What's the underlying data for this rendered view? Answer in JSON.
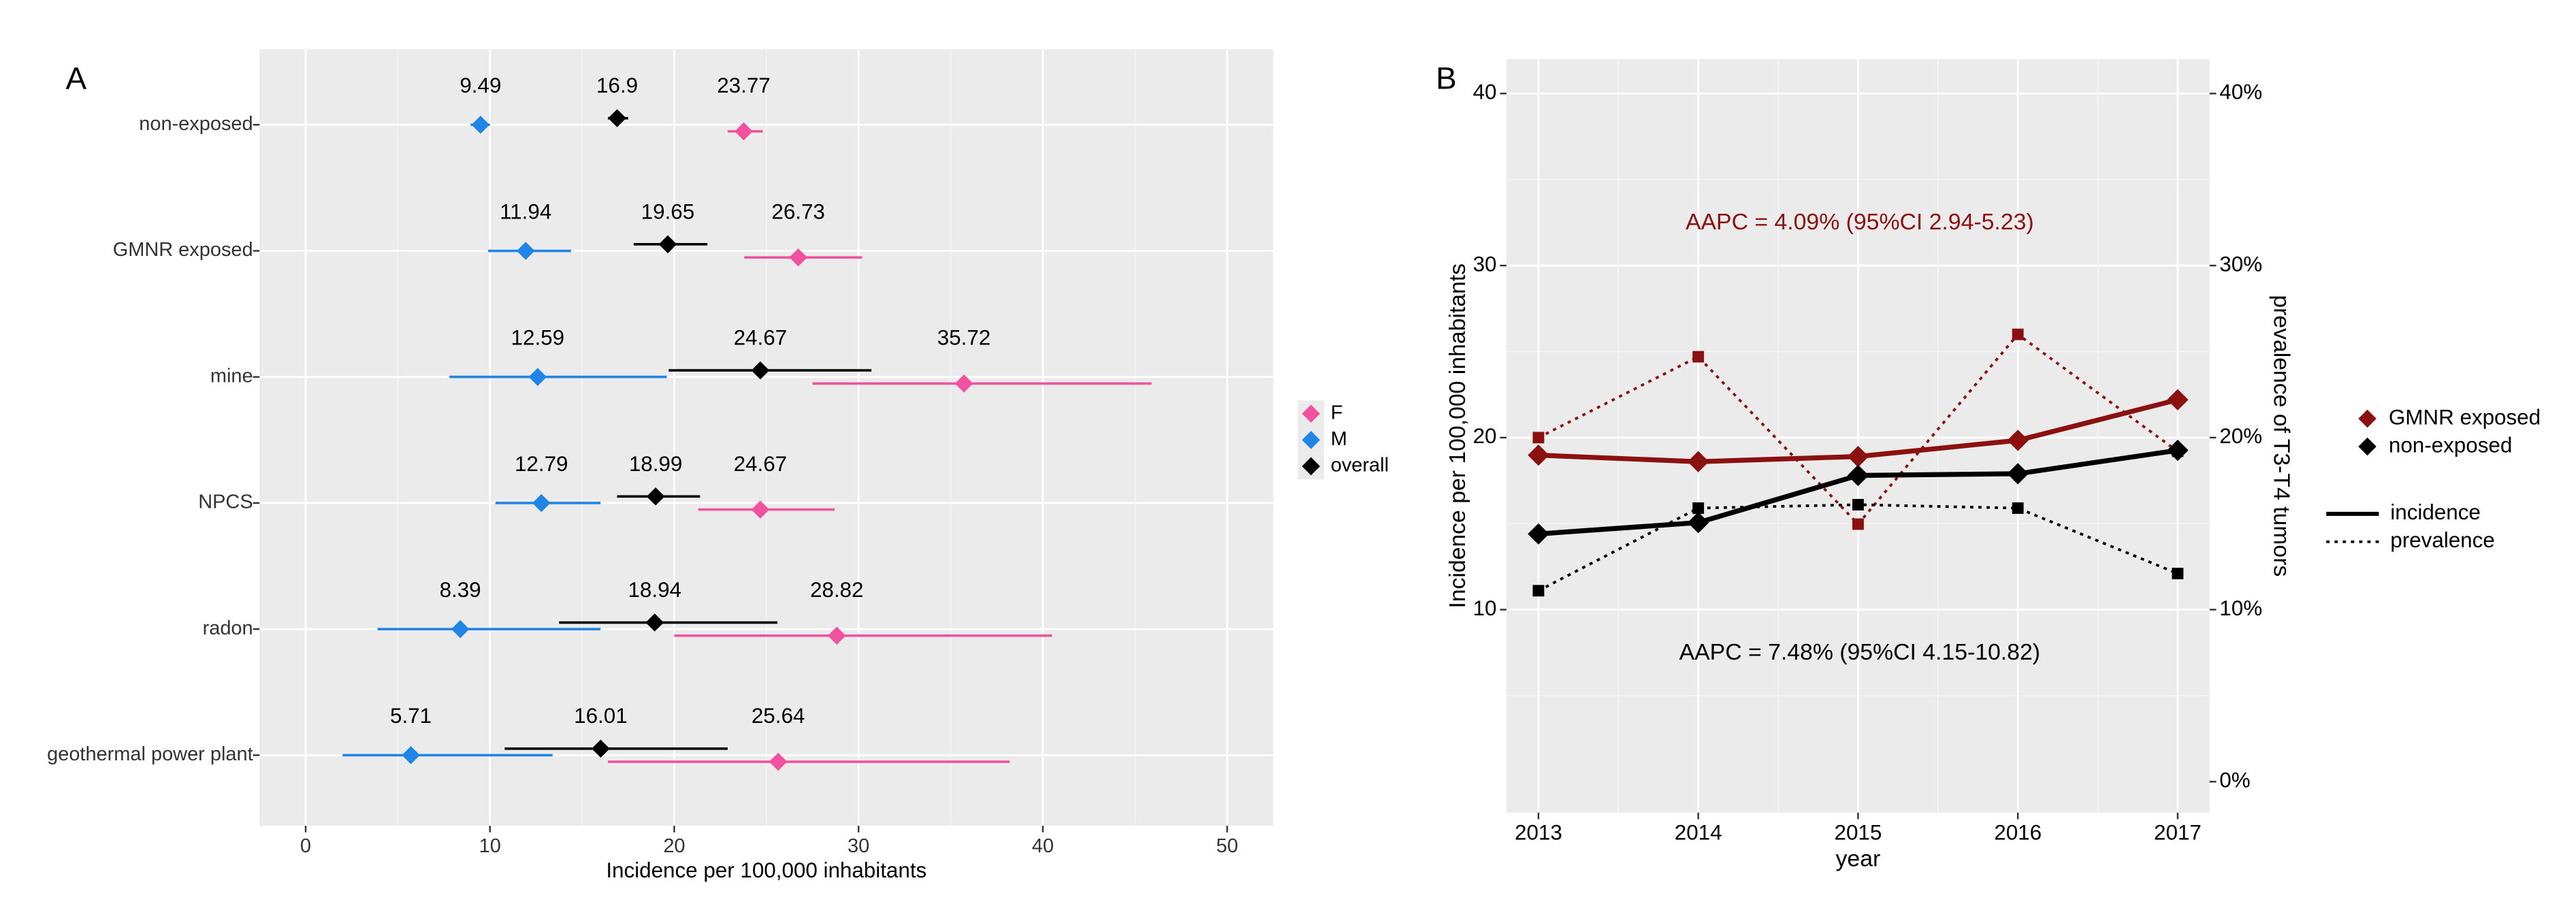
{
  "chart_data": [
    {
      "type": "dot-errorbar",
      "label": "A",
      "xlabel": "Incidence per 100,000 inhabitants",
      "categories": [
        "non-exposed",
        "GMNR exposed",
        "mine",
        "NPCS",
        "radon",
        "geothermal power plant"
      ],
      "series": [
        {
          "name": "F",
          "color": "#f052a0",
          "values": [
            23.77,
            26.73,
            35.72,
            24.67,
            28.82,
            25.64
          ],
          "low": [
            22.9,
            23.8,
            27.5,
            21.3,
            20.0,
            16.4
          ],
          "high": [
            24.8,
            30.2,
            45.9,
            28.7,
            40.5,
            38.2
          ]
        },
        {
          "name": "M",
          "color": "#1f86e8",
          "values": [
            9.49,
            11.94,
            12.59,
            12.79,
            8.39,
            5.71
          ],
          "low": [
            8.95,
            9.9,
            7.8,
            10.3,
            3.9,
            2.0
          ],
          "high": [
            10.0,
            14.4,
            19.6,
            16.0,
            16.0,
            13.4
          ]
        },
        {
          "name": "overall",
          "color": "#000000",
          "values": [
            16.9,
            19.65,
            24.67,
            18.99,
            18.94,
            16.01
          ],
          "low": [
            16.4,
            17.8,
            19.7,
            16.9,
            13.75,
            10.8
          ],
          "high": [
            17.5,
            21.8,
            30.7,
            21.4,
            25.6,
            22.9
          ]
        }
      ],
      "xlim": [
        -2.5,
        52.5
      ],
      "xticks": [
        0,
        10,
        20,
        30,
        40,
        50
      ],
      "grid": true
    },
    {
      "type": "line",
      "label": "B",
      "xlabel": "year",
      "ylabel": "Incidence per 100,000 inhabitants",
      "y2label": "prevalence of T3-T4 tumors",
      "x": [
        2013,
        2014,
        2015,
        2016,
        2017
      ],
      "xlim": [
        2012.8,
        2017.2
      ],
      "xticks": [
        2013,
        2014,
        2015,
        2016,
        2017
      ],
      "ylim": [
        -1.8,
        42
      ],
      "yticks": [
        10,
        20,
        30,
        40
      ],
      "y2lim": [
        -1.8,
        42
      ],
      "y2ticks": [
        {
          "value": 0,
          "label": "0%"
        },
        {
          "value": 10,
          "label": "10%"
        },
        {
          "value": 20,
          "label": "20%"
        },
        {
          "value": 30,
          "label": "30%"
        },
        {
          "value": 40,
          "label": "40%"
        }
      ],
      "annotations": [
        {
          "text": "AAPC = 4.09% (95%CI 2.94-5.23)",
          "color": "#8b1010"
        },
        {
          "text": "AAPC = 7.48% (95%CI 4.15-10.82)",
          "color": "#000000"
        }
      ],
      "linetypes": [
        "incidence",
        "prevalence"
      ],
      "series": [
        {
          "name": "GMNR exposed",
          "color": "#8b1010",
          "values": [
            18.98,
            18.6,
            18.9,
            19.84,
            22.2
          ],
          "prevalence": [
            20.0,
            24.7,
            14.97,
            26.0,
            19.2
          ]
        },
        {
          "name": "non-exposed",
          "color": "#000000",
          "values": [
            14.4,
            15.06,
            17.8,
            17.9,
            19.26
          ],
          "prevalence": [
            11.1,
            15.9,
            16.1,
            15.9,
            12.1
          ]
        }
      ],
      "grid": true
    }
  ]
}
